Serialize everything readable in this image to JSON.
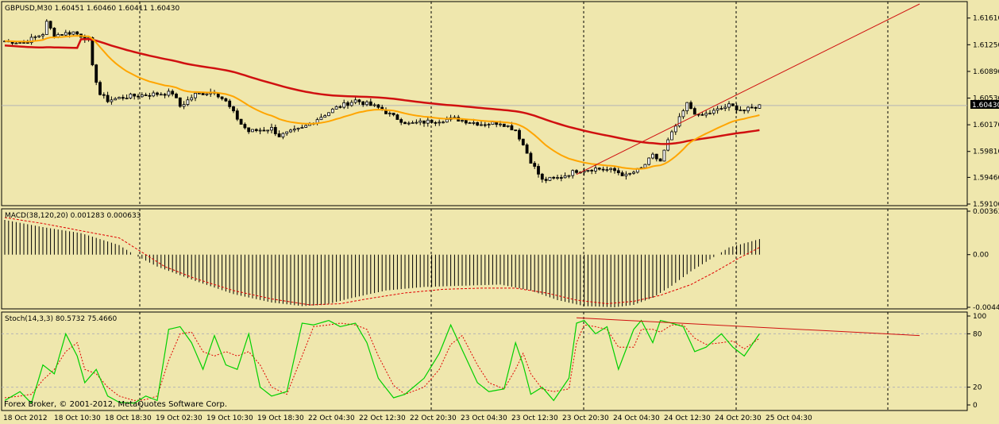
{
  "symbol_header": "GBPUSD,M30  1.60451 1.60460 1.60411 1.60430",
  "macd_header": "MACD(38,120,20) 0.001283 0.000633",
  "stoch_header": "Stoch(14,3,3) 80.5732 75.4660",
  "copyright": "Forex Broker, © 2001-2012, MetaQuotes Software Corp.",
  "colors": {
    "background": "#efe7ad",
    "candle": "#000000",
    "ma_fast": "#ffa500",
    "ma_slow": "#d01010",
    "trendline": "#d01010",
    "stoch_main": "#00d000",
    "stoch_signal": "#e00000",
    "macd_hist": "#000000",
    "macd_signal": "#e00000",
    "price_marker_bg": "#000000",
    "price_marker_text": "#ffffff"
  },
  "chart_data": [
    {
      "type": "candlestick",
      "title": "GBPUSD,M30",
      "y_ticks": [
        "1.61610",
        "1.61250",
        "1.60890",
        "1.60530",
        "1.60170",
        "1.59810",
        "1.59460",
        "1.59100"
      ],
      "ylim": [
        1.591,
        1.618
      ],
      "current_price": "1.60430",
      "x_ticks": [
        "18 Oct 2012",
        "18 Oct 10:30",
        "18 Oct 18:30",
        "19 Oct 02:30",
        "19 Oct 10:30",
        "19 Oct 18:30",
        "22 Oct 04:30",
        "22 Oct 12:30",
        "22 Oct 20:30",
        "23 Oct 04:30",
        "23 Oct 12:30",
        "23 Oct 20:30",
        "24 Oct 04:30",
        "24 Oct 12:30",
        "24 Oct 20:30",
        "25 Oct 04:30"
      ],
      "close_path": [
        [
          0,
          1.613
        ],
        [
          5,
          1.6128
        ],
        [
          10,
          1.614
        ],
        [
          11,
          1.6155
        ],
        [
          13,
          1.6138
        ],
        [
          18,
          1.6142
        ],
        [
          22,
          1.6132
        ],
        [
          23,
          1.6095
        ],
        [
          25,
          1.6058
        ],
        [
          27,
          1.605
        ],
        [
          32,
          1.6055
        ],
        [
          38,
          1.6058
        ],
        [
          44,
          1.606
        ],
        [
          46,
          1.6042
        ],
        [
          50,
          1.6058
        ],
        [
          55,
          1.6062
        ],
        [
          58,
          1.6048
        ],
        [
          62,
          1.6018
        ],
        [
          64,
          1.6008
        ],
        [
          70,
          1.6012
        ],
        [
          72,
          1.6002
        ],
        [
          78,
          1.6012
        ],
        [
          82,
          1.6025
        ],
        [
          87,
          1.604
        ],
        [
          92,
          1.605
        ],
        [
          98,
          1.604
        ],
        [
          102,
          1.6028
        ],
        [
          106,
          1.6018
        ],
        [
          112,
          1.6022
        ],
        [
          118,
          1.6025
        ],
        [
          125,
          1.6018
        ],
        [
          130,
          1.602
        ],
        [
          134,
          1.601
        ],
        [
          136,
          1.599
        ],
        [
          138,
          1.5968
        ],
        [
          141,
          1.5942
        ],
        [
          145,
          1.5945
        ],
        [
          150,
          1.5955
        ],
        [
          155,
          1.5958
        ],
        [
          160,
          1.5955
        ],
        [
          163,
          1.5948
        ],
        [
          167,
          1.5958
        ],
        [
          170,
          1.5975
        ],
        [
          172,
          1.5968
        ],
        [
          174,
          1.5995
        ],
        [
          176,
          1.6015
        ],
        [
          179,
          1.6045
        ],
        [
          182,
          1.6028
        ],
        [
          186,
          1.6035
        ],
        [
          190,
          1.6043
        ],
        [
          194,
          1.6036
        ],
        [
          198,
          1.6043
        ]
      ],
      "trendline": [
        [
          150,
          1.595
        ],
        [
          240,
          1.618
        ]
      ]
    },
    {
      "type": "bar",
      "title": "MACD(38,120,20)",
      "y_ticks": [
        "0.00363",
        "0.00",
        "-0.00440"
      ],
      "ylim": [
        -0.0044,
        0.00363
      ],
      "main_path": [
        [
          0,
          0.0029
        ],
        [
          10,
          0.0023
        ],
        [
          20,
          0.0018
        ],
        [
          30,
          0.0008
        ],
        [
          34,
          0.0
        ],
        [
          40,
          -0.001
        ],
        [
          50,
          -0.0022
        ],
        [
          60,
          -0.0033
        ],
        [
          70,
          -0.004
        ],
        [
          78,
          -0.0043
        ],
        [
          84,
          -0.0042
        ],
        [
          90,
          -0.0037
        ],
        [
          100,
          -0.003
        ],
        [
          110,
          -0.0027
        ],
        [
          120,
          -0.0026
        ],
        [
          130,
          -0.0025
        ],
        [
          138,
          -0.003
        ],
        [
          145,
          -0.0038
        ],
        [
          152,
          -0.0043
        ],
        [
          160,
          -0.0044
        ],
        [
          165,
          -0.0042
        ],
        [
          170,
          -0.0036
        ],
        [
          175,
          -0.0026
        ],
        [
          180,
          -0.0014
        ],
        [
          185,
          -0.0004
        ],
        [
          190,
          0.0006
        ],
        [
          198,
          0.0013
        ]
      ],
      "signal_path": [
        [
          0,
          0.0031
        ],
        [
          10,
          0.0026
        ],
        [
          20,
          0.002
        ],
        [
          30,
          0.0014
        ],
        [
          36,
          0.0002
        ],
        [
          42,
          -0.001
        ],
        [
          50,
          -0.002
        ],
        [
          60,
          -0.003
        ],
        [
          70,
          -0.0037
        ],
        [
          80,
          -0.0042
        ],
        [
          88,
          -0.0041
        ],
        [
          95,
          -0.0037
        ],
        [
          105,
          -0.0032
        ],
        [
          115,
          -0.0029
        ],
        [
          125,
          -0.0028
        ],
        [
          134,
          -0.0028
        ],
        [
          142,
          -0.0032
        ],
        [
          150,
          -0.0038
        ],
        [
          158,
          -0.0041
        ],
        [
          165,
          -0.0039
        ],
        [
          172,
          -0.0034
        ],
        [
          180,
          -0.0025
        ],
        [
          186,
          -0.0015
        ],
        [
          192,
          -0.0004
        ],
        [
          198,
          0.0006
        ]
      ]
    },
    {
      "type": "line",
      "title": "Stoch(14,3,3)",
      "y_ticks": [
        "100",
        "80",
        "20",
        "0"
      ],
      "ylim": [
        0,
        100
      ],
      "main_path": [
        [
          0,
          5
        ],
        [
          4,
          15
        ],
        [
          7,
          2
        ],
        [
          10,
          45
        ],
        [
          13,
          35
        ],
        [
          16,
          80
        ],
        [
          19,
          55
        ],
        [
          21,
          25
        ],
        [
          24,
          40
        ],
        [
          27,
          10
        ],
        [
          30,
          3
        ],
        [
          34,
          2
        ],
        [
          37,
          10
        ],
        [
          40,
          5
        ],
        [
          43,
          85
        ],
        [
          46,
          88
        ],
        [
          49,
          70
        ],
        [
          52,
          40
        ],
        [
          55,
          78
        ],
        [
          58,
          45
        ],
        [
          61,
          40
        ],
        [
          64,
          80
        ],
        [
          67,
          20
        ],
        [
          70,
          10
        ],
        [
          74,
          15
        ],
        [
          78,
          92
        ],
        [
          81,
          90
        ],
        [
          85,
          95
        ],
        [
          88,
          88
        ],
        [
          92,
          92
        ],
        [
          95,
          70
        ],
        [
          98,
          30
        ],
        [
          102,
          8
        ],
        [
          105,
          12
        ],
        [
          110,
          30
        ],
        [
          114,
          58
        ],
        [
          117,
          90
        ],
        [
          120,
          62
        ],
        [
          124,
          25
        ],
        [
          127,
          15
        ],
        [
          131,
          18
        ],
        [
          134,
          70
        ],
        [
          136,
          45
        ],
        [
          138,
          12
        ],
        [
          141,
          20
        ],
        [
          144,
          5
        ],
        [
          148,
          30
        ],
        [
          150,
          92
        ],
        [
          152,
          95
        ],
        [
          155,
          80
        ],
        [
          158,
          88
        ],
        [
          161,
          40
        ],
        [
          165,
          85
        ],
        [
          167,
          95
        ],
        [
          170,
          70
        ],
        [
          172,
          95
        ],
        [
          175,
          92
        ],
        [
          178,
          88
        ],
        [
          181,
          60
        ],
        [
          184,
          65
        ],
        [
          188,
          80
        ],
        [
          191,
          65
        ],
        [
          194,
          55
        ],
        [
          198,
          80
        ]
      ],
      "signal_path": [
        [
          0,
          8
        ],
        [
          4,
          10
        ],
        [
          7,
          12
        ],
        [
          10,
          28
        ],
        [
          13,
          40
        ],
        [
          16,
          60
        ],
        [
          19,
          70
        ],
        [
          21,
          40
        ],
        [
          24,
          35
        ],
        [
          27,
          20
        ],
        [
          30,
          10
        ],
        [
          34,
          5
        ],
        [
          37,
          6
        ],
        [
          40,
          10
        ],
        [
          43,
          50
        ],
        [
          46,
          80
        ],
        [
          49,
          82
        ],
        [
          52,
          60
        ],
        [
          55,
          55
        ],
        [
          58,
          60
        ],
        [
          61,
          55
        ],
        [
          64,
          60
        ],
        [
          67,
          45
        ],
        [
          70,
          20
        ],
        [
          74,
          12
        ],
        [
          78,
          55
        ],
        [
          81,
          88
        ],
        [
          85,
          90
        ],
        [
          88,
          92
        ],
        [
          92,
          90
        ],
        [
          95,
          85
        ],
        [
          98,
          55
        ],
        [
          102,
          22
        ],
        [
          105,
          12
        ],
        [
          110,
          20
        ],
        [
          114,
          40
        ],
        [
          117,
          68
        ],
        [
          120,
          78
        ],
        [
          124,
          45
        ],
        [
          127,
          25
        ],
        [
          131,
          18
        ],
        [
          134,
          40
        ],
        [
          136,
          58
        ],
        [
          138,
          35
        ],
        [
          141,
          18
        ],
        [
          144,
          15
        ],
        [
          148,
          18
        ],
        [
          150,
          70
        ],
        [
          152,
          90
        ],
        [
          155,
          88
        ],
        [
          158,
          85
        ],
        [
          161,
          65
        ],
        [
          165,
          65
        ],
        [
          167,
          85
        ],
        [
          170,
          85
        ],
        [
          172,
          82
        ],
        [
          175,
          90
        ],
        [
          178,
          90
        ],
        [
          181,
          75
        ],
        [
          184,
          68
        ],
        [
          188,
          70
        ],
        [
          191,
          72
        ],
        [
          194,
          63
        ],
        [
          198,
          75
        ]
      ],
      "trendline": [
        [
          150,
          98
        ],
        [
          240,
          78
        ]
      ]
    }
  ]
}
